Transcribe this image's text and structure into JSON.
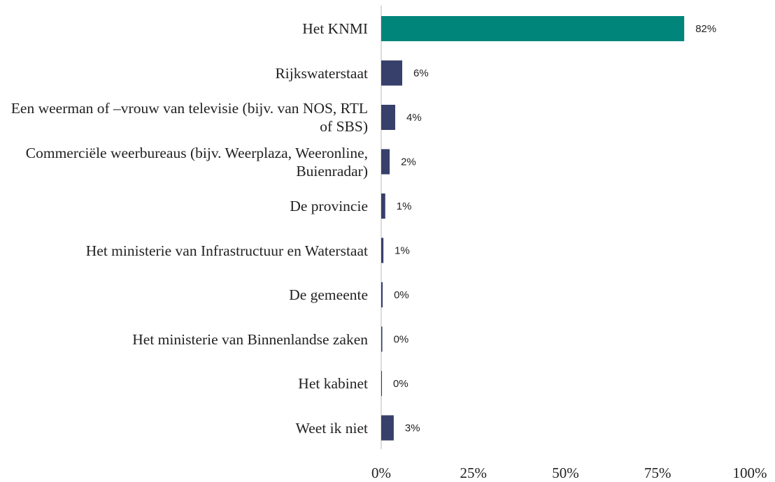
{
  "chart_data": {
    "type": "barh",
    "categories": [
      "Het KNMI",
      "Rijkswaterstaat",
      "Een weerman of –vrouw van televisie (bijv. van NOS, RTL of SBS)",
      "Commerciële weerbureaus (bijv. Weerplaza, Weeronline, Buienradar)",
      "De provincie",
      "Het ministerie van Infrastructuur en Waterstaat",
      "De gemeente",
      "Het ministerie van Binnenlandse zaken",
      "Het kabinet",
      "Weet ik niet"
    ],
    "values": [
      82.2,
      5.7,
      3.8,
      2.3,
      1.1,
      0.6,
      0.4,
      0.3,
      0.2,
      3.4
    ],
    "value_labels": [
      "82%",
      "6%",
      "4%",
      "2%",
      "1%",
      "1%",
      "0%",
      "0%",
      "0%",
      "3%"
    ],
    "colors": [
      "#00857a",
      "#373f6b",
      "#373f6b",
      "#373f6b",
      "#373f6b",
      "#373f6b",
      "#373f6b",
      "#373f6b",
      "#373f6b",
      "#373f6b"
    ],
    "xlim": [
      0,
      100
    ],
    "xticks": [
      {
        "value": 0,
        "label": "0%"
      },
      {
        "value": 25,
        "label": "25%"
      },
      {
        "value": 50,
        "label": "50%"
      },
      {
        "value": 75,
        "label": "75%"
      },
      {
        "value": 100,
        "label": "100%"
      }
    ]
  }
}
